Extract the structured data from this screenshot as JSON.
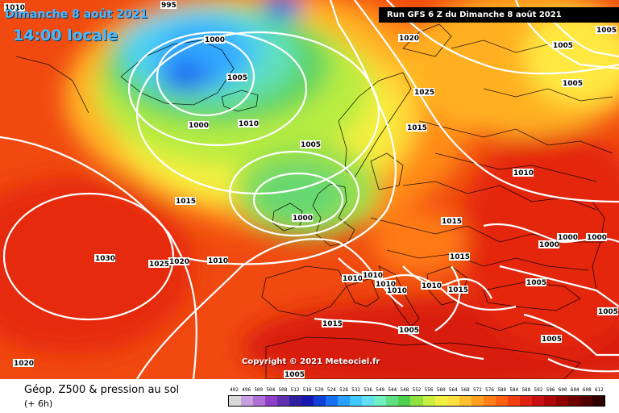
{
  "header": {
    "date_title": "Dimanche 8 août 2021",
    "time_title": "14:00 locale",
    "run_info": "Run GFS 6 Z du Dimanche 8 août 2021"
  },
  "copyright": "Copyright © 2021 Meteociel.fr",
  "footer": {
    "title": "Géop. Z500 & pression au sol",
    "subtitle": "(+ 6h)"
  },
  "scale": {
    "labels": [
      "492",
      "496",
      "500",
      "504",
      "508",
      "512",
      "516",
      "520",
      "524",
      "528",
      "532",
      "536",
      "540",
      "544",
      "548",
      "552",
      "556",
      "560",
      "564",
      "568",
      "572",
      "576",
      "580",
      "584",
      "588",
      "592",
      "596",
      "600",
      "604",
      "608",
      "612"
    ],
    "colors": [
      "#d8d8d8",
      "#c8a0e0",
      "#b070d8",
      "#9040c8",
      "#6030b0",
      "#3020a0",
      "#1818b0",
      "#1040d8",
      "#1870f0",
      "#28a0ff",
      "#40c8ff",
      "#60e0f0",
      "#70f0c0",
      "#60e080",
      "#50d050",
      "#90e040",
      "#c8f040",
      "#f0f040",
      "#ffe040",
      "#ffc030",
      "#ffa020",
      "#ff8018",
      "#ff6010",
      "#f04010",
      "#e02010",
      "#c81010",
      "#b00808",
      "#900000",
      "#700000",
      "#500000",
      "#300000"
    ]
  },
  "isobars": [
    {
      "value": "1010"
    },
    {
      "value": "995"
    },
    {
      "value": "1000"
    },
    {
      "value": "1005"
    },
    {
      "value": "1000"
    },
    {
      "value": "1010"
    },
    {
      "value": "1005"
    },
    {
      "value": "1000"
    },
    {
      "value": "1015"
    },
    {
      "value": "1030"
    },
    {
      "value": "1025"
    },
    {
      "value": "1020"
    },
    {
      "value": "1010"
    },
    {
      "value": "1020"
    },
    {
      "value": "1025"
    },
    {
      "value": "1015"
    },
    {
      "value": "1005"
    },
    {
      "value": "1005"
    },
    {
      "value": "1005"
    },
    {
      "value": "1010"
    },
    {
      "value": "1015"
    },
    {
      "value": "1015"
    },
    {
      "value": "1000"
    },
    {
      "value": "1000"
    },
    {
      "value": "1000"
    },
    {
      "value": "1005"
    },
    {
      "value": "1010"
    },
    {
      "value": "1010"
    },
    {
      "value": "1010"
    },
    {
      "value": "1010"
    },
    {
      "value": "1010"
    },
    {
      "value": "1015"
    },
    {
      "value": "1015"
    },
    {
      "value": "1005"
    },
    {
      "value": "1005"
    },
    {
      "value": "1005"
    },
    {
      "value": "1020"
    },
    {
      "value": "1005"
    }
  ]
}
